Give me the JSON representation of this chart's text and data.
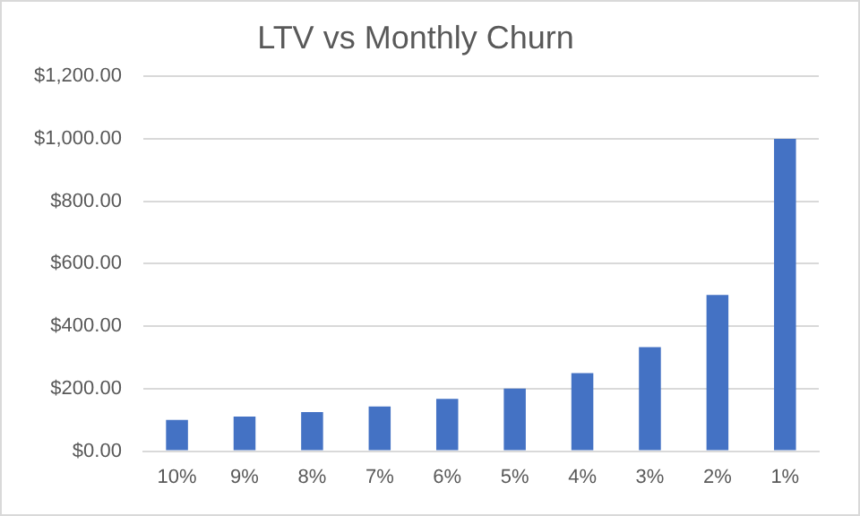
{
  "chart_data": {
    "type": "bar",
    "title": "LTV vs Monthly Churn",
    "categories": [
      "10%",
      "9%",
      "8%",
      "7%",
      "6%",
      "5%",
      "4%",
      "3%",
      "2%",
      "1%"
    ],
    "values": [
      100,
      111,
      125,
      143,
      167,
      200,
      250,
      333,
      500,
      1000
    ],
    "color": "#4472c4",
    "ylim": [
      0,
      1200
    ],
    "yticks": [
      {
        "value": 0,
        "label": "$0.00"
      },
      {
        "value": 200,
        "label": "$200.00"
      },
      {
        "value": 400,
        "label": "$400.00"
      },
      {
        "value": 600,
        "label": "$600.00"
      },
      {
        "value": 800,
        "label": "$800.00"
      },
      {
        "value": 1000,
        "label": "$1,000.00"
      },
      {
        "value": 1200,
        "label": "$1,200.00"
      }
    ],
    "grid": "y"
  }
}
